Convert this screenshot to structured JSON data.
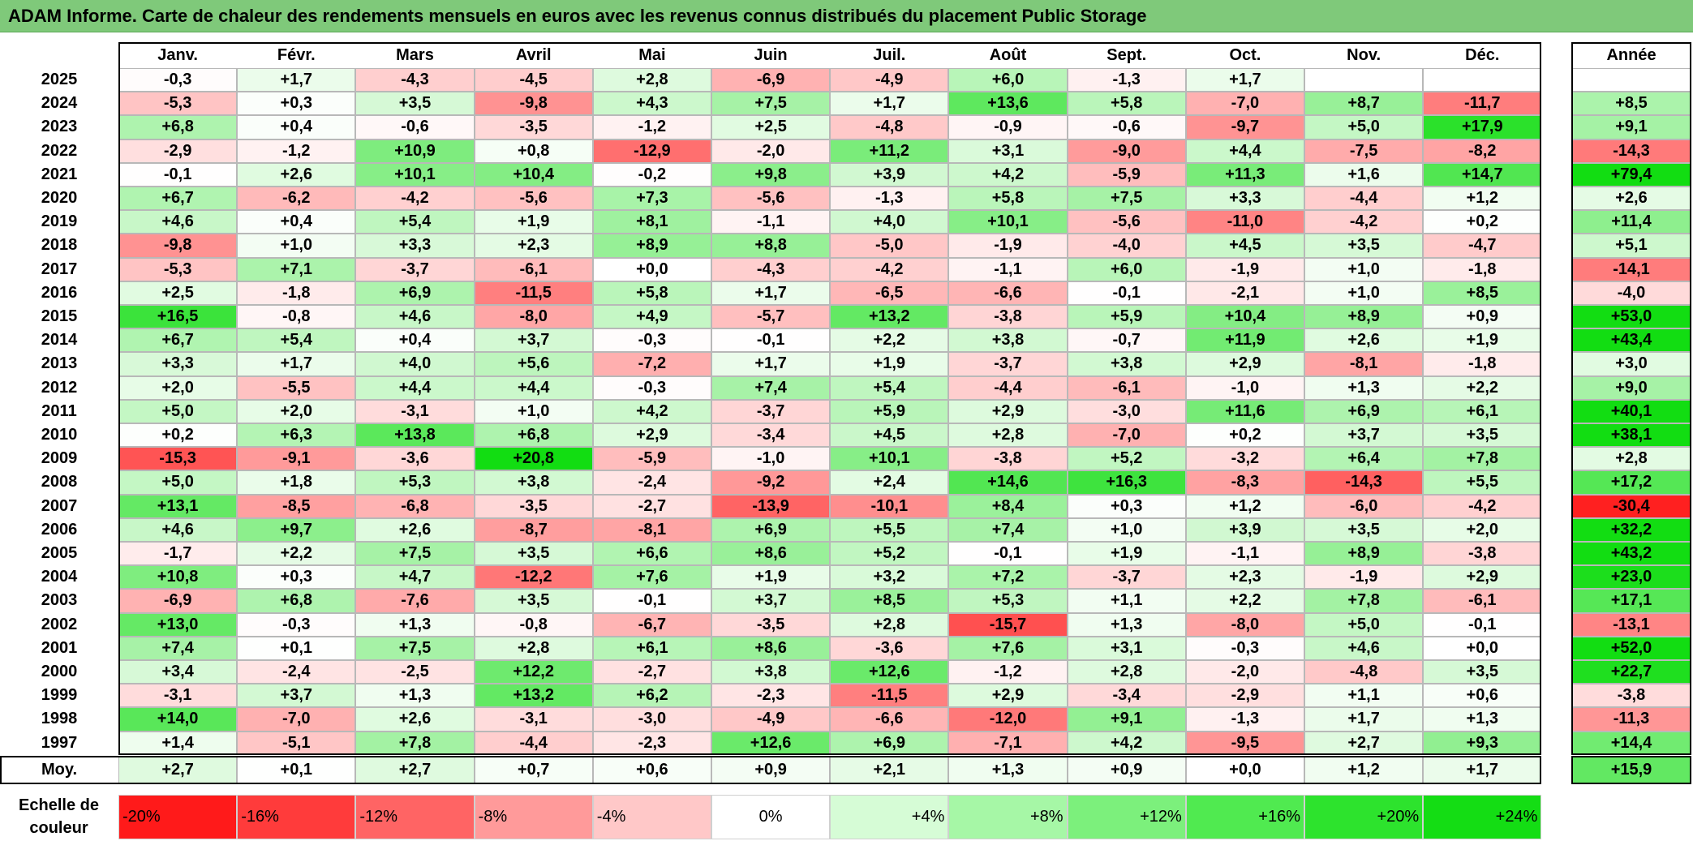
{
  "chart_data": {
    "type": "heatmap",
    "title": "ADAM Informe. Carte de chaleur des rendements mensuels en euros avec les revenus connus distribués du placement Public Storage",
    "months": [
      "Janv.",
      "Févr.",
      "Mars",
      "Avril",
      "Mai",
      "Juin",
      "Juil.",
      "Août",
      "Sept.",
      "Oct.",
      "Nov.",
      "Déc."
    ],
    "year_column_label": "Année",
    "average_row_label": "Moy.",
    "rows": [
      {
        "year": "2025",
        "values": [
          -0.3,
          1.7,
          -4.3,
          -4.5,
          2.8,
          -6.9,
          -4.9,
          6.0,
          -1.3,
          1.7,
          null,
          null
        ],
        "annual": null
      },
      {
        "year": "2024",
        "values": [
          -5.3,
          0.3,
          3.5,
          -9.8,
          4.3,
          7.5,
          1.7,
          13.6,
          5.8,
          -7.0,
          8.7,
          -11.7
        ],
        "annual": 8.5
      },
      {
        "year": "2023",
        "values": [
          6.8,
          0.4,
          -0.6,
          -3.5,
          -1.2,
          2.5,
          -4.8,
          -0.9,
          -0.6,
          -9.7,
          5.0,
          17.9
        ],
        "annual": 9.1
      },
      {
        "year": "2022",
        "values": [
          -2.9,
          -1.2,
          10.9,
          0.8,
          -12.9,
          -2.0,
          11.2,
          3.1,
          -9.0,
          4.4,
          -7.5,
          -8.2
        ],
        "annual": -14.3
      },
      {
        "year": "2021",
        "values": [
          -0.1,
          2.6,
          10.1,
          10.4,
          -0.2,
          9.8,
          3.9,
          4.2,
          -5.9,
          11.3,
          1.6,
          14.7
        ],
        "annual": 79.4
      },
      {
        "year": "2020",
        "values": [
          6.7,
          -6.2,
          -4.2,
          -5.6,
          7.3,
          -5.6,
          -1.3,
          5.8,
          7.5,
          3.3,
          -4.4,
          1.2
        ],
        "annual": 2.6
      },
      {
        "year": "2019",
        "values": [
          4.6,
          0.4,
          5.4,
          1.9,
          8.1,
          -1.1,
          4.0,
          10.1,
          -5.6,
          -11.0,
          -4.2,
          0.2
        ],
        "annual": 11.4
      },
      {
        "year": "2018",
        "values": [
          -9.8,
          1.0,
          3.3,
          2.3,
          8.9,
          8.8,
          -5.0,
          -1.9,
          -4.0,
          4.5,
          3.5,
          -4.7
        ],
        "annual": 5.1
      },
      {
        "year": "2017",
        "values": [
          -5.3,
          7.1,
          -3.7,
          -6.1,
          0.0,
          -4.3,
          -4.2,
          -1.1,
          6.0,
          -1.9,
          1.0,
          -1.8
        ],
        "annual": -14.1
      },
      {
        "year": "2016",
        "values": [
          2.5,
          -1.8,
          6.9,
          -11.5,
          5.8,
          1.7,
          -6.5,
          -6.6,
          -0.1,
          -2.1,
          1.0,
          8.5
        ],
        "annual": -4.0
      },
      {
        "year": "2015",
        "values": [
          16.5,
          -0.8,
          4.6,
          -8.0,
          4.9,
          -5.7,
          13.2,
          -3.8,
          5.9,
          10.4,
          8.9,
          0.9
        ],
        "annual": 53.0
      },
      {
        "year": "2014",
        "values": [
          6.7,
          5.4,
          0.4,
          3.7,
          -0.3,
          -0.1,
          2.2,
          3.8,
          -0.7,
          11.9,
          2.6,
          1.9
        ],
        "annual": 43.4
      },
      {
        "year": "2013",
        "values": [
          3.3,
          1.7,
          4.0,
          5.6,
          -7.2,
          1.7,
          1.9,
          -3.7,
          3.8,
          2.9,
          -8.1,
          -1.8
        ],
        "annual": 3.0
      },
      {
        "year": "2012",
        "values": [
          2.0,
          -5.5,
          4.4,
          4.4,
          -0.3,
          7.4,
          5.4,
          -4.4,
          -6.1,
          -1.0,
          1.3,
          2.2
        ],
        "annual": 9.0
      },
      {
        "year": "2011",
        "values": [
          5.0,
          2.0,
          -3.1,
          1.0,
          4.2,
          -3.7,
          5.9,
          2.9,
          -3.0,
          11.6,
          6.9,
          6.1
        ],
        "annual": 40.1
      },
      {
        "year": "2010",
        "values": [
          0.2,
          6.3,
          13.8,
          6.8,
          2.9,
          -3.4,
          4.5,
          2.8,
          -7.0,
          0.2,
          3.7,
          3.5
        ],
        "annual": 38.1
      },
      {
        "year": "2009",
        "values": [
          -15.3,
          -9.1,
          -3.6,
          20.8,
          -5.9,
          -1.0,
          10.1,
          -3.8,
          5.2,
          -3.2,
          6.4,
          7.8
        ],
        "annual": 2.8
      },
      {
        "year": "2008",
        "values": [
          5.0,
          1.8,
          5.3,
          3.8,
          -2.4,
          -9.2,
          2.4,
          14.6,
          16.3,
          -8.3,
          -14.3,
          5.5
        ],
        "annual": 17.2
      },
      {
        "year": "2007",
        "values": [
          13.1,
          -8.5,
          -6.8,
          -3.5,
          -2.7,
          -13.9,
          -10.1,
          8.4,
          0.3,
          1.2,
          -6.0,
          -4.2
        ],
        "annual": -30.4
      },
      {
        "year": "2006",
        "values": [
          4.6,
          9.7,
          2.6,
          -8.7,
          -8.1,
          6.9,
          5.5,
          7.4,
          1.0,
          3.9,
          3.5,
          2.0
        ],
        "annual": 32.2
      },
      {
        "year": "2005",
        "values": [
          -1.7,
          2.2,
          7.5,
          3.5,
          6.6,
          8.6,
          5.2,
          -0.1,
          1.9,
          -1.1,
          8.9,
          -3.8
        ],
        "annual": 43.2
      },
      {
        "year": "2004",
        "values": [
          10.8,
          0.3,
          4.7,
          -12.2,
          7.6,
          1.9,
          3.2,
          7.2,
          -3.7,
          2.3,
          -1.9,
          2.9
        ],
        "annual": 23.0
      },
      {
        "year": "2003",
        "values": [
          -6.9,
          6.8,
          -7.6,
          3.5,
          -0.1,
          3.7,
          8.5,
          5.3,
          1.1,
          2.2,
          7.8,
          -6.1
        ],
        "annual": 17.1
      },
      {
        "year": "2002",
        "values": [
          13.0,
          -0.3,
          1.3,
          -0.8,
          -6.7,
          -3.5,
          2.8,
          -15.7,
          1.3,
          -8.0,
          5.0,
          -0.1
        ],
        "annual": -13.1
      },
      {
        "year": "2001",
        "values": [
          7.4,
          0.1,
          7.5,
          2.8,
          6.1,
          8.6,
          -3.6,
          7.6,
          3.1,
          -0.3,
          4.6,
          0.0
        ],
        "annual": 52.0
      },
      {
        "year": "2000",
        "values": [
          3.4,
          -2.4,
          -2.5,
          12.2,
          -2.7,
          3.8,
          12.6,
          -1.2,
          2.8,
          -2.0,
          -4.8,
          3.5
        ],
        "annual": 22.7
      },
      {
        "year": "1999",
        "values": [
          -3.1,
          3.7,
          1.3,
          13.2,
          6.2,
          -2.3,
          -11.5,
          2.9,
          -3.4,
          -2.9,
          1.1,
          0.6
        ],
        "annual": -3.8
      },
      {
        "year": "1998",
        "values": [
          14.0,
          -7.0,
          2.6,
          -3.1,
          -3.0,
          -4.9,
          -6.6,
          -12.0,
          9.1,
          -1.3,
          1.7,
          1.3
        ],
        "annual": -11.3
      },
      {
        "year": "1997",
        "values": [
          1.4,
          -5.1,
          7.8,
          -4.4,
          -2.3,
          12.6,
          6.9,
          -7.1,
          4.2,
          -9.5,
          2.7,
          9.3
        ],
        "annual": 14.4
      }
    ],
    "average": {
      "values": [
        2.7,
        0.1,
        2.7,
        0.7,
        0.6,
        0.9,
        2.1,
        1.3,
        0.9,
        0.0,
        1.2,
        1.7
      ],
      "annual": 15.9
    },
    "color_scale": {
      "label": "Echelle de couleur",
      "stops": [
        {
          "label": "-20%",
          "color": "#ff1a1a"
        },
        {
          "label": "-16%",
          "color": "#ff3b3b"
        },
        {
          "label": "-12%",
          "color": "#ff6464"
        },
        {
          "label": "-8%",
          "color": "#ff9a9a"
        },
        {
          "label": "-4%",
          "color": "#ffc8c8"
        },
        {
          "label": "0%",
          "color": "#ffffff"
        },
        {
          "label": "+4%",
          "color": "#d6fcd6"
        },
        {
          "label": "+8%",
          "color": "#a6f7a6"
        },
        {
          "label": "+12%",
          "color": "#7cf07c"
        },
        {
          "label": "+16%",
          "color": "#50ea50"
        },
        {
          "label": "+20%",
          "color": "#2de32d"
        },
        {
          "label": "+24%",
          "color": "#14dd14"
        }
      ]
    }
  }
}
